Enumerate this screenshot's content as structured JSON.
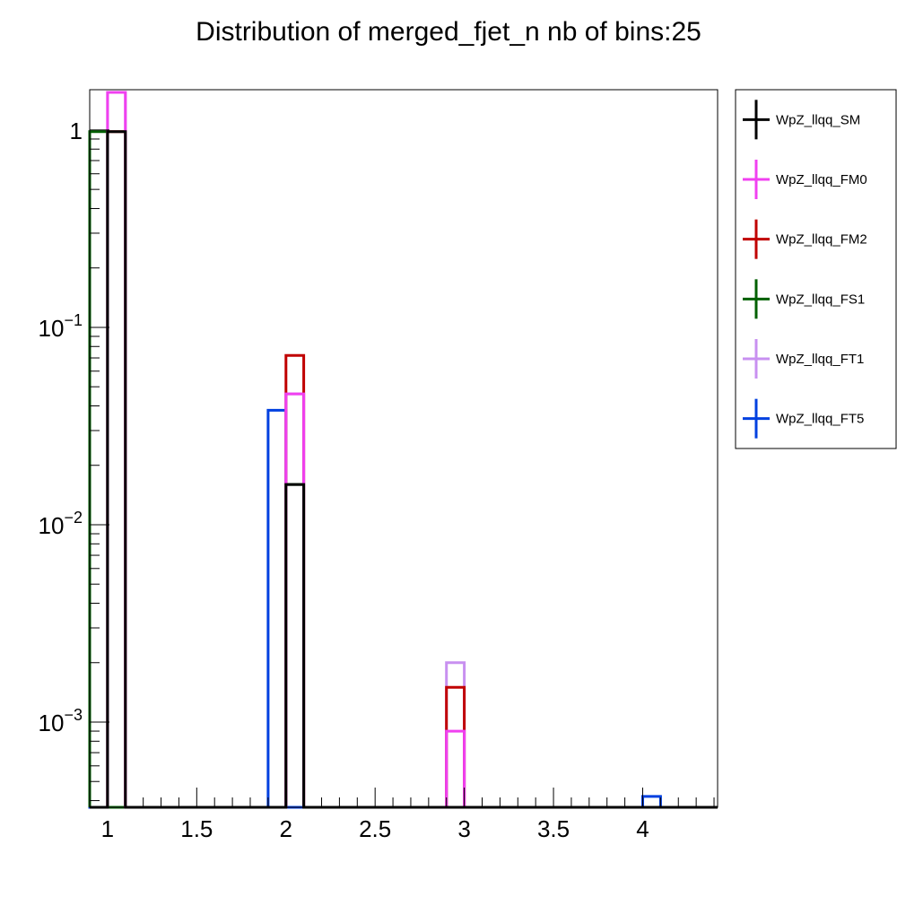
{
  "chart_data": {
    "type": "bar",
    "title": "Distribution of merged_fjet_n nb of bins:25",
    "xlabel": "",
    "ylabel": "",
    "x_range": [
      0.9,
      4.42
    ],
    "y_range": [
      0.00037,
      1.6
    ],
    "y_scale": "log",
    "bin_width": 0.1,
    "x_ticks": [
      {
        "value": 1,
        "label": "1"
      },
      {
        "value": 1.5,
        "label": "1.5"
      },
      {
        "value": 2,
        "label": "2"
      },
      {
        "value": 2.5,
        "label": "2.5"
      },
      {
        "value": 3,
        "label": "3"
      },
      {
        "value": 3.5,
        "label": "3.5"
      },
      {
        "value": 4,
        "label": "4"
      }
    ],
    "y_ticks": [
      {
        "value": 1,
        "base": "1",
        "exp": ""
      },
      {
        "value": 0.1,
        "base": "10",
        "exp": "−1"
      },
      {
        "value": 0.01,
        "base": "10",
        "exp": "−2"
      },
      {
        "value": 0.001,
        "base": "10",
        "exp": "−3"
      }
    ],
    "legend_position": "outside-right",
    "series": [
      {
        "name": "WpZ_llqq_FT5",
        "color": "#0040e0",
        "bins": [
          [
            0.8,
            0.9,
            0.97
          ],
          [
            1.9,
            2.0,
            0.038
          ],
          [
            4.0,
            4.1,
            0.00042
          ]
        ]
      },
      {
        "name": "WpZ_llqq_FS1",
        "color": "#006000",
        "bins": [
          [
            0.9,
            1.0,
            0.98
          ],
          [
            2.0,
            2.1,
            0.016
          ]
        ]
      },
      {
        "name": "WpZ_llqq_FT1",
        "color": "#c890f0",
        "bins": [
          [
            1.0,
            1.1,
            1.55
          ],
          [
            2.0,
            2.1,
            0.046
          ],
          [
            2.9,
            3.0,
            0.002
          ]
        ]
      },
      {
        "name": "WpZ_llqq_FM2",
        "color": "#c00000",
        "bins": [
          [
            1.0,
            1.1,
            0.98
          ],
          [
            2.0,
            2.1,
            0.072
          ],
          [
            2.9,
            3.0,
            0.0015
          ]
        ]
      },
      {
        "name": "WpZ_llqq_FM0",
        "color": "#f040f0",
        "bins": [
          [
            1.0,
            1.1,
            1.55
          ],
          [
            2.0,
            2.1,
            0.046
          ],
          [
            2.9,
            3.0,
            0.0009
          ]
        ]
      },
      {
        "name": "WpZ_llqq_SM",
        "color": "#000000",
        "bins": [
          [
            1.0,
            1.1,
            0.98
          ],
          [
            2.0,
            2.1,
            0.016
          ]
        ]
      }
    ],
    "legend": [
      {
        "name": "WpZ_llqq_SM",
        "color": "#000000"
      },
      {
        "name": "WpZ_llqq_FM0",
        "color": "#f040f0"
      },
      {
        "name": "WpZ_llqq_FM2",
        "color": "#c00000"
      },
      {
        "name": "WpZ_llqq_FS1",
        "color": "#006000"
      },
      {
        "name": "WpZ_llqq_FT1",
        "color": "#c890f0"
      },
      {
        "name": "WpZ_llqq_FT5",
        "color": "#0040e0"
      }
    ]
  }
}
